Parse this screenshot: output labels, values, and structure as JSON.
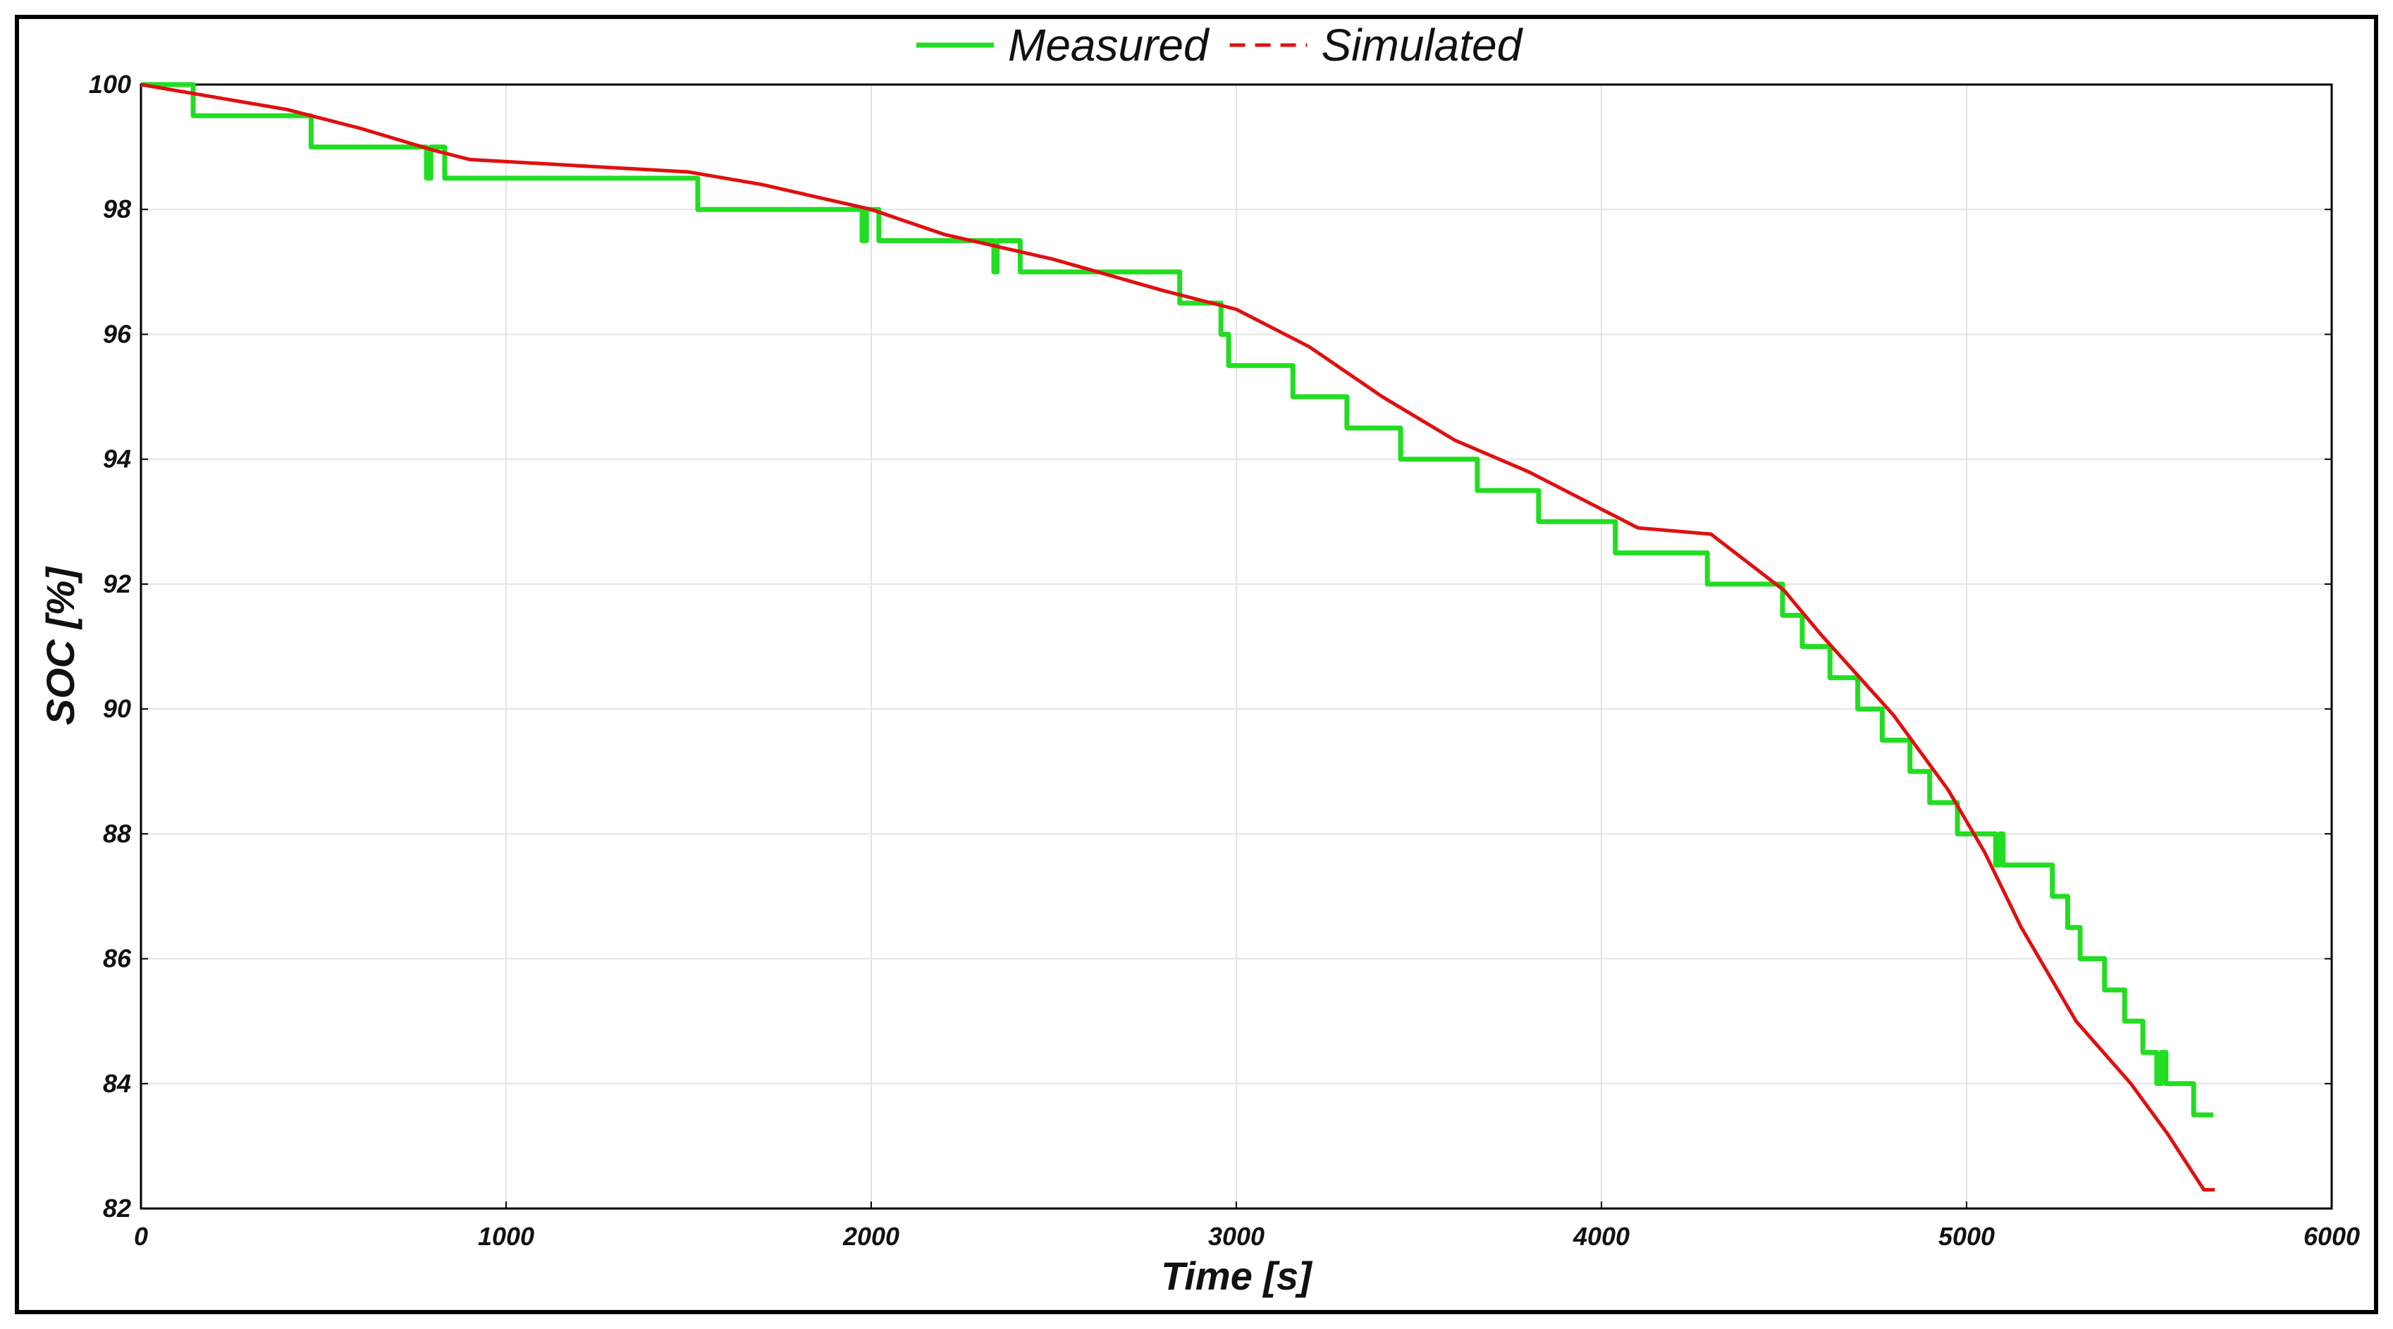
{
  "chart_data": {
    "type": "line",
    "xlabel": "Time [s]",
    "ylabel": "SOC [%]",
    "xlim": [
      0,
      6000
    ],
    "xticks": [
      0,
      1000,
      2000,
      3000,
      4000,
      5000,
      6000
    ],
    "ylim": [
      82,
      100
    ],
    "yticks": [
      82,
      84,
      86,
      88,
      90,
      92,
      94,
      96,
      98,
      100
    ],
    "grid": true,
    "legend": "top",
    "series": [
      {
        "name": "Measured",
        "color": "#22dd22",
        "drawstyle": "steps-post",
        "x": [
          0,
          143,
          466,
          782,
          794,
          832,
          1525,
          1975,
          1987,
          2021,
          2336,
          2345,
          2408,
          2845,
          2958,
          2979,
          3155,
          3303,
          3450,
          3660,
          3828,
          4038,
          4290,
          4496,
          4550,
          4626,
          4702,
          4769,
          4845,
          4899,
          4975,
          5080,
          5090,
          5100,
          5235,
          5277,
          5311,
          5378,
          5433,
          5483,
          5521,
          5534,
          5546,
          5622,
          5676
        ],
        "values": [
          100,
          99.5,
          99,
          98.5,
          99,
          98.5,
          98,
          97.5,
          98,
          97.5,
          97,
          97.5,
          97,
          96.5,
          96,
          95.5,
          95,
          94.5,
          94,
          93.5,
          93,
          92.5,
          92,
          91.5,
          91,
          90.5,
          90,
          89.5,
          89,
          88.5,
          88,
          87.5,
          88,
          87.5,
          87,
          86.5,
          86,
          85.5,
          85,
          84.5,
          84,
          84.5,
          84,
          83.5,
          83.5
        ]
      },
      {
        "name": "Simulated",
        "color": "#e01010",
        "drawstyle": "default",
        "x": [
          0,
          400,
          600,
          800,
          900,
          1200,
          1500,
          1700,
          2000,
          2200,
          2500,
          2800,
          3000,
          3200,
          3400,
          3600,
          3800,
          4000,
          4100,
          4300,
          4500,
          4600,
          4800,
          4950,
          5050,
          5150,
          5300,
          5450,
          5550,
          5650,
          5680
        ],
        "values": [
          100,
          99.6,
          99.3,
          98.95,
          98.8,
          98.7,
          98.6,
          98.4,
          98.0,
          97.6,
          97.2,
          96.7,
          96.4,
          95.8,
          95.0,
          94.3,
          93.8,
          93.2,
          92.9,
          92.8,
          91.9,
          91.2,
          89.9,
          88.7,
          87.7,
          86.5,
          85.0,
          84.0,
          83.2,
          82.3,
          82.3
        ]
      }
    ]
  }
}
